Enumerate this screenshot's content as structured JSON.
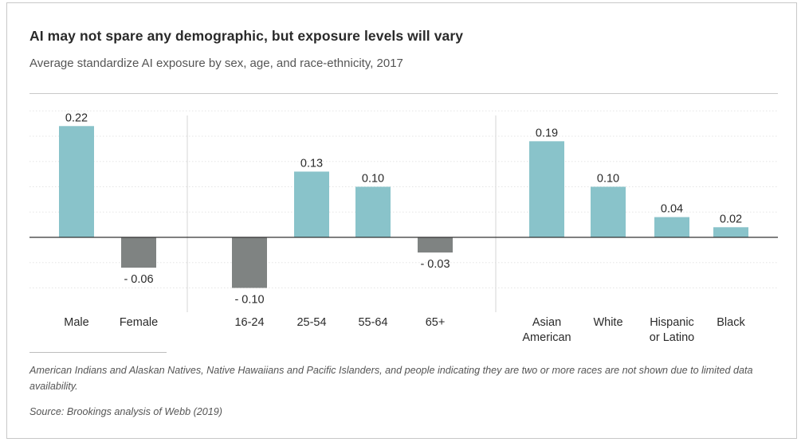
{
  "chart_data": {
    "type": "bar",
    "title": "AI may not spare any demographic, but exposure levels will vary",
    "subtitle": "Average standardize AI exposure by sex, age, and race-ethnicity, 2017",
    "groups": [
      {
        "name": "sex",
        "categories": [
          "Male",
          "Female"
        ],
        "values": [
          0.22,
          -0.06
        ],
        "labels": [
          "0.22",
          "- 0.06"
        ]
      },
      {
        "name": "age",
        "categories": [
          "16-24",
          "25-54",
          "55-64",
          "65+"
        ],
        "values": [
          -0.1,
          0.13,
          0.1,
          -0.03
        ],
        "labels": [
          "- 0.10",
          "0.13",
          "0.10",
          "- 0.03"
        ]
      },
      {
        "name": "race-ethnicity",
        "categories": [
          [
            "Asian",
            "American"
          ],
          "White",
          [
            "Hispanic",
            "or Latino"
          ],
          "Black"
        ],
        "values": [
          0.19,
          0.1,
          0.04,
          0.02
        ],
        "labels": [
          "0.19",
          "0.10",
          "0.04",
          "0.02"
        ]
      }
    ],
    "ylim": [
      -0.1,
      0.25
    ],
    "grid": true,
    "colors": {
      "positive": "#89c3ca",
      "negative": "#7f8382",
      "zero_line": "#333333",
      "grid": "#e5e5e5",
      "divider": "#d6d6d6"
    }
  },
  "footer": {
    "note": "American Indians and Alaskan Natives, Native Hawaiians and Pacific Islanders, and people indicating they are two or more races are not shown due to limited data availability.",
    "source": "Source: Brookings analysis of Webb (2019)"
  }
}
